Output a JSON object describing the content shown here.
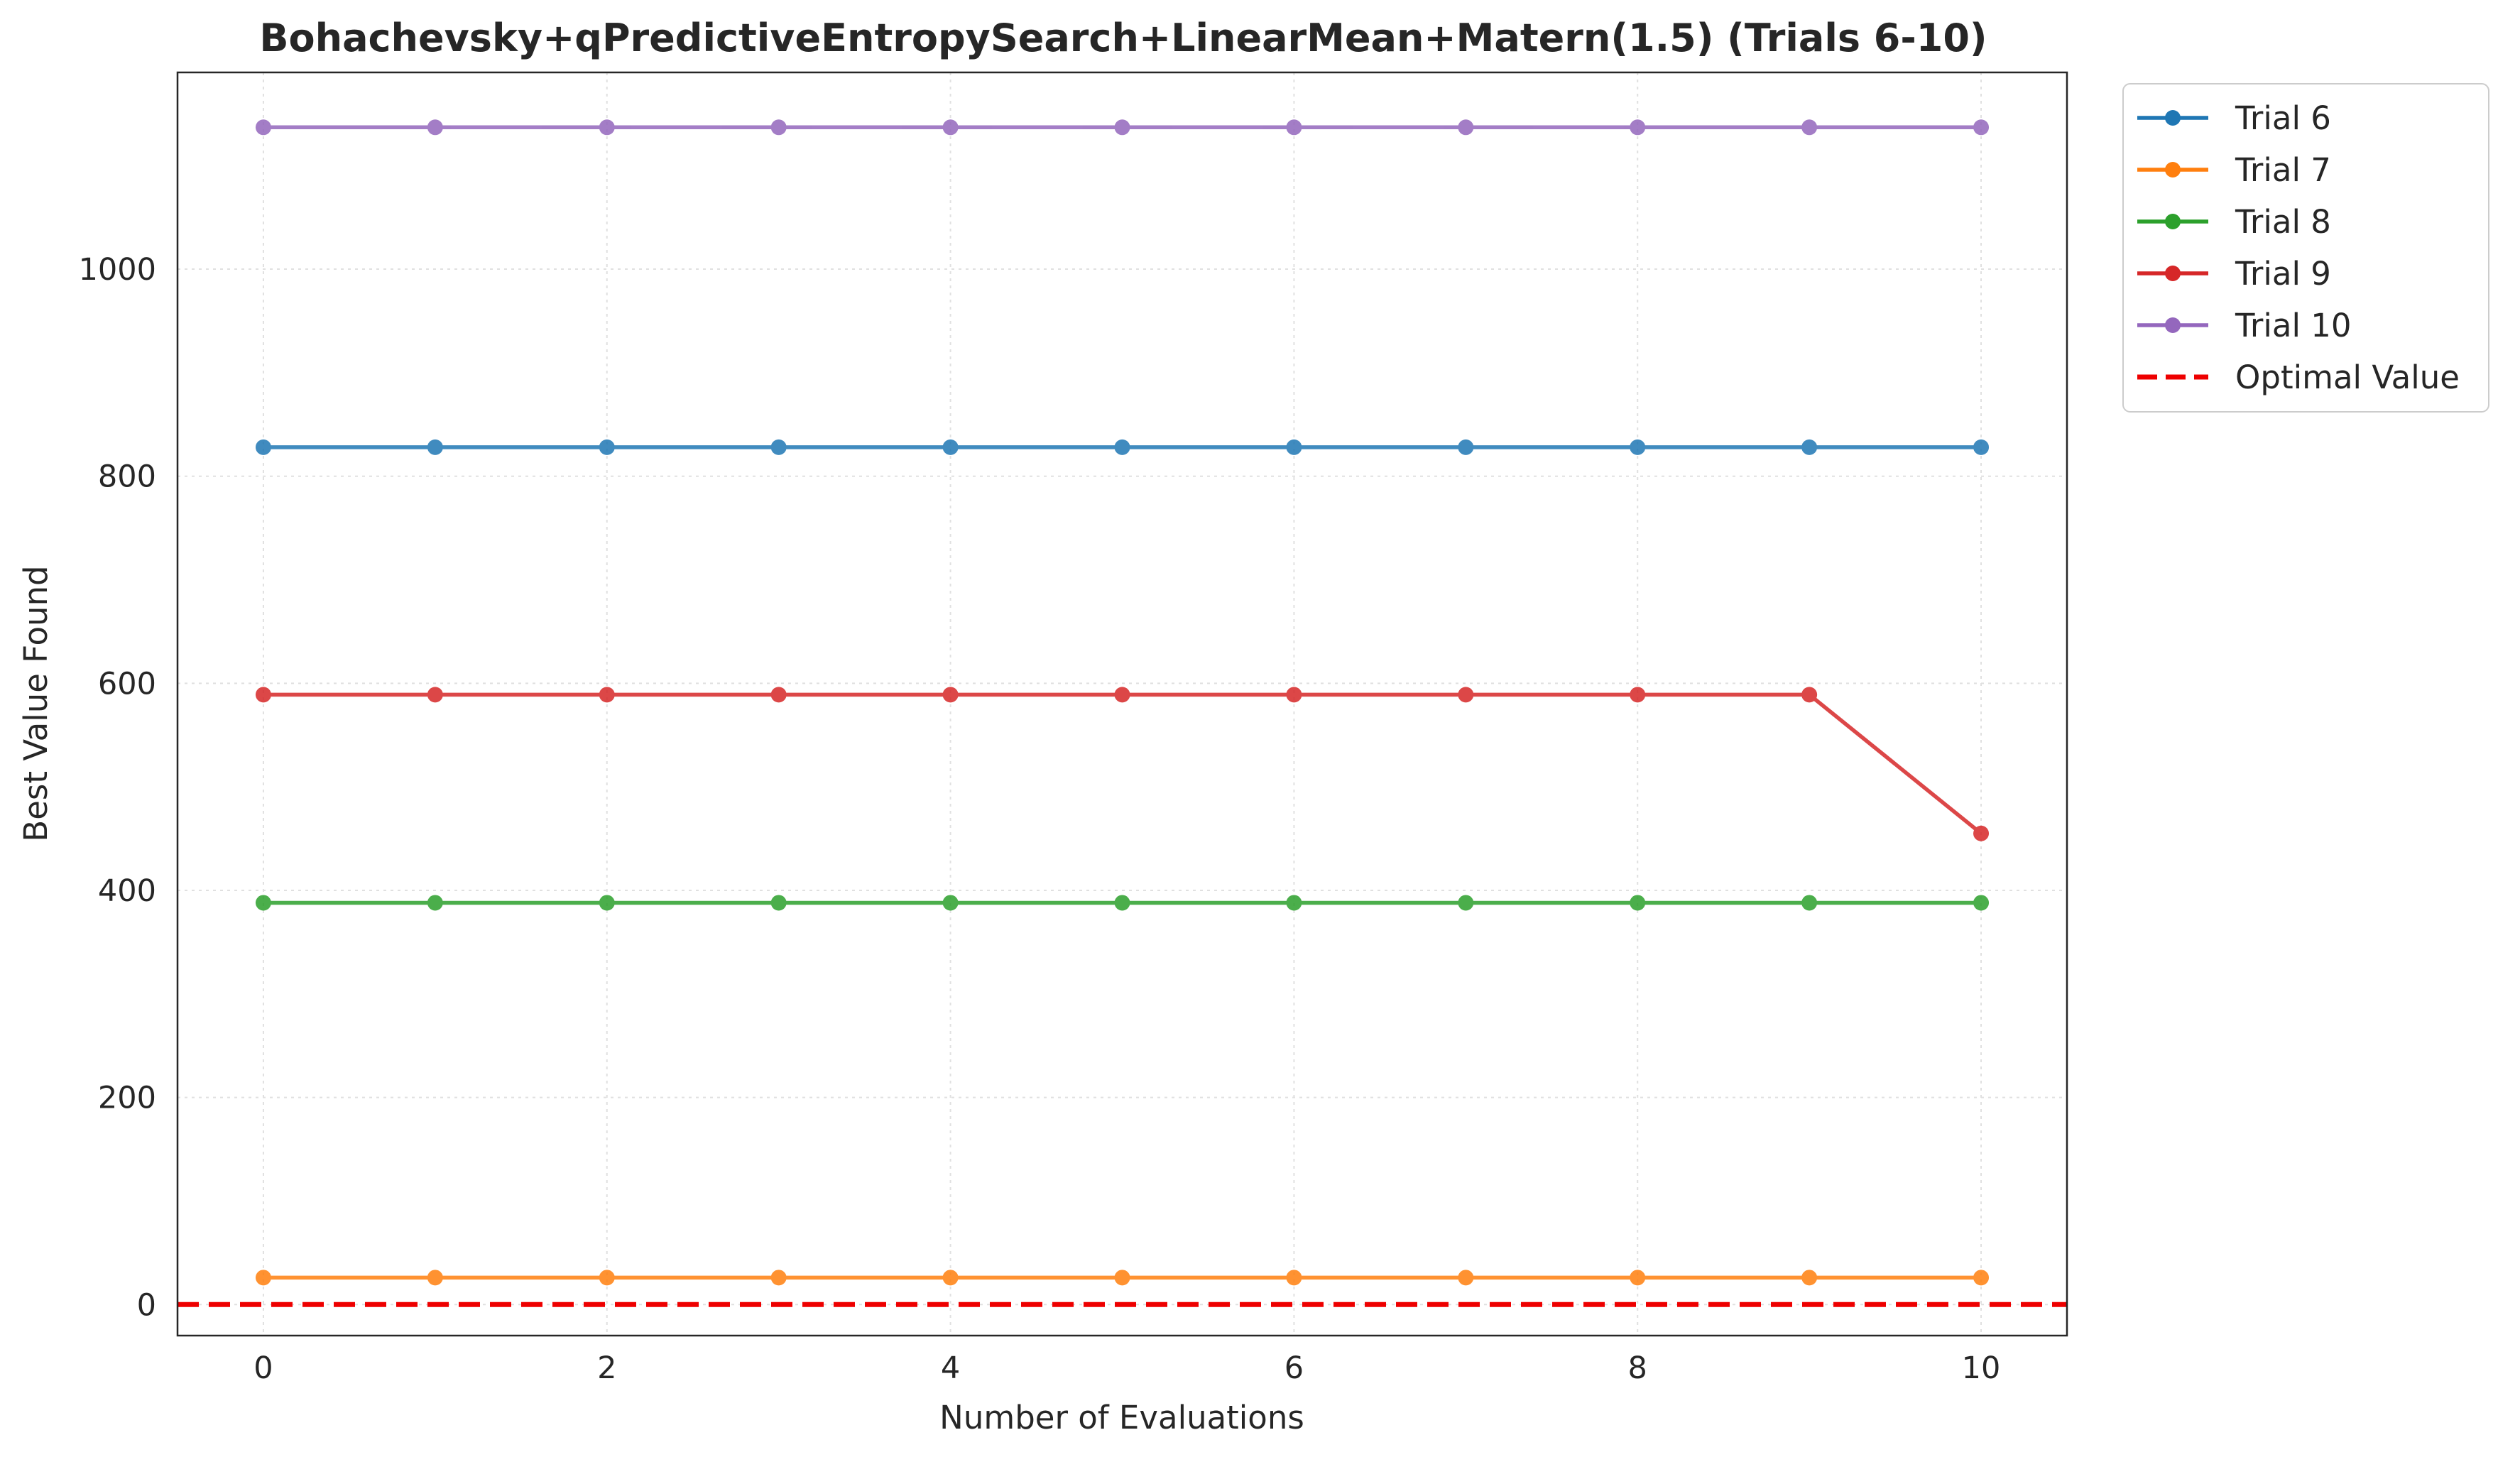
{
  "chart_data": {
    "type": "line",
    "title": "Bohachevsky+qPredictiveEntropySearch+LinearMean+Matern(1.5) (Trials 6-10)",
    "xlabel": "Number of Evaluations",
    "ylabel": "Best Value Found",
    "xlim": [
      -0.5,
      10.5
    ],
    "ylim": [
      -30,
      1190
    ],
    "xticks": [
      0,
      2,
      4,
      6,
      8,
      10
    ],
    "yticks": [
      0,
      200,
      400,
      600,
      800,
      1000
    ],
    "grid": true,
    "legend_position": "outside-top-right",
    "x": [
      0,
      1,
      2,
      3,
      4,
      5,
      6,
      7,
      8,
      9,
      10
    ],
    "series": [
      {
        "name": "Trial 6",
        "color": "#1f77b4",
        "values": [
          828,
          828,
          828,
          828,
          828,
          828,
          828,
          828,
          828,
          828,
          828
        ]
      },
      {
        "name": "Trial 7",
        "color": "#ff7f0e",
        "values": [
          26,
          26,
          26,
          26,
          26,
          26,
          26,
          26,
          26,
          26,
          26
        ]
      },
      {
        "name": "Trial 8",
        "color": "#2ca02c",
        "values": [
          388,
          388,
          388,
          388,
          388,
          388,
          388,
          388,
          388,
          388,
          388
        ]
      },
      {
        "name": "Trial 9",
        "color": "#d62728",
        "values": [
          589,
          589,
          589,
          589,
          589,
          589,
          589,
          589,
          589,
          589,
          455
        ]
      },
      {
        "name": "Trial 10",
        "color": "#9467bd",
        "values": [
          1137,
          1137,
          1137,
          1137,
          1137,
          1137,
          1137,
          1137,
          1137,
          1137,
          1137
        ]
      }
    ],
    "reference_line": {
      "name": "Optimal Value",
      "value": 0,
      "color": "#ee0000",
      "style": "dashed"
    }
  }
}
